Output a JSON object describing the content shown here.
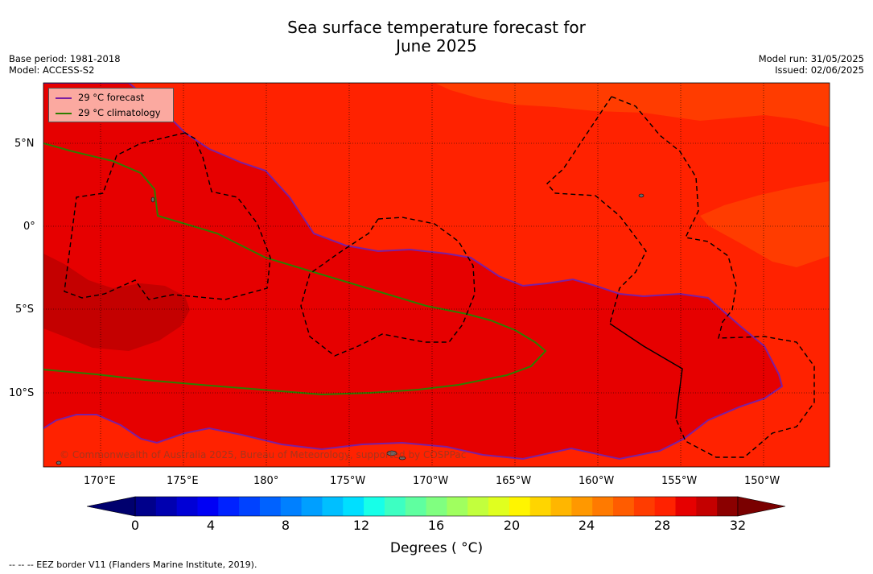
{
  "header": {
    "title_line1": "Sea surface temperature forecast for",
    "title_line2": "June 2025",
    "base_period": "Base period: 1981-2018",
    "model": "Model: ACCESS-S2",
    "model_run": "Model run: 31/05/2025",
    "issued": "Issued: 02/06/2025"
  },
  "legend": {
    "items": [
      {
        "label": "29 °C  forecast",
        "color": "#7b1fa2"
      },
      {
        "label": "29 °C  climatology",
        "color": "#2e7d00"
      }
    ]
  },
  "map": {
    "lat_ticks": [
      "5°N",
      "0°",
      "5°S",
      "10°S"
    ],
    "lon_ticks": [
      "170°E",
      "175°E",
      "180°",
      "175°W",
      "170°W",
      "165°W",
      "160°W",
      "155°W",
      "150°W"
    ],
    "copyright": "© Commonwealth of Australia 2025, Bureau of Meteorology, supported by COSPPac",
    "fill_colors": {
      "band_28_29": "#ff2200",
      "band_29_30": "#e60000",
      "band_30_31": "#c40000",
      "band_27_28": "#ff3c00"
    }
  },
  "colorbar": {
    "tick_labels": [
      "0",
      "4",
      "8",
      "12",
      "16",
      "20",
      "24",
      "28",
      "32"
    ],
    "title": "Degrees ( °C)",
    "colors": [
      "#00008b",
      "#0000b0",
      "#0000d6",
      "#0000f5",
      "#0022ff",
      "#0042ff",
      "#0062ff",
      "#0080ff",
      "#009fff",
      "#00bfff",
      "#00dfff",
      "#17ffe8",
      "#3dffc2",
      "#5fffa0",
      "#80ff80",
      "#a0ff5f",
      "#c2ff3d",
      "#e0ff1f",
      "#fff500",
      "#ffd500",
      "#ffb600",
      "#ff9800",
      "#ff7a00",
      "#ff5c00",
      "#ff3c00",
      "#ff2200",
      "#e60000",
      "#c40000",
      "#8b0000"
    ],
    "under_color": "#00006e",
    "over_color": "#7a0000"
  },
  "footnote": "-- -- -- EEZ border V11 (Flanders Marine Institute, 2019)."
}
